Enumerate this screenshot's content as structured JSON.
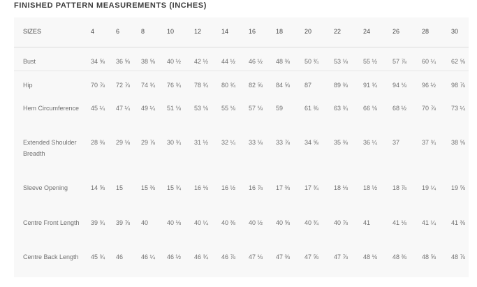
{
  "title": "FINISHED PATTERN MEASUREMENTS (INCHES)",
  "headers": [
    "SIZES",
    "4",
    "6",
    "8",
    "10",
    "12",
    "14",
    "16",
    "18",
    "20",
    "22",
    "24",
    "26",
    "28",
    "30"
  ],
  "rows": [
    {
      "label": "Bust",
      "values": [
        "34 ⅝",
        "36 ⅝",
        "38 ⅝",
        "40 ½",
        "42 ½",
        "44 ½",
        "46 ½",
        "48 ⅜",
        "50 ¾",
        "53 ⅛",
        "55 ½",
        "57 ⅞",
        "60 ¼",
        "62 ⅝"
      ]
    },
    {
      "label": "Hip",
      "values": [
        "70 ⅞",
        "72 ⅞",
        "74 ¾",
        "76 ¾",
        "78 ¾",
        "80 ¾",
        "82 ⅝",
        "84 ⅝",
        "87",
        "89 ⅜",
        "91 ¾",
        "94 ⅛",
        "96 ½",
        "98 ⅞"
      ]
    },
    {
      "label": "Hem Circumference",
      "values": [
        "45 ¼",
        "47 ¼",
        "49 ¼",
        "51 ⅛",
        "53 ⅛",
        "55 ⅛",
        "57 ⅛",
        "59",
        "61 ⅜",
        "63 ¾",
        "66 ⅛",
        "68 ½",
        "70 ⅞",
        "73 ¼"
      ]
    },
    {
      "label": "Extended Shoulder Breadth",
      "values": [
        "28 ⅜",
        "29 ⅛",
        "29 ⅞",
        "30 ¾",
        "31 ½",
        "32 ¼",
        "33 ⅛",
        "33 ⅞",
        "34 ⅝",
        "35 ⅜",
        "36 ¼",
        "37",
        "37 ¾",
        "38 ⅝"
      ]
    },
    {
      "label": "Sleeve Opening",
      "values": [
        "14 ⅝",
        "15",
        "15 ⅜",
        "15 ¾",
        "16 ⅛",
        "16 ½",
        "16 ⅞",
        "17 ⅜",
        "17 ¾",
        "18 ⅛",
        "18 ½",
        "18 ⅞",
        "19 ¼",
        "19 ⅝"
      ]
    },
    {
      "label": "Centre Front Length",
      "values": [
        "39 ¾",
        "39 ⅞",
        "40",
        "40 ⅛",
        "40 ¼",
        "40 ⅜",
        "40 ½",
        "40 ⅝",
        "40 ¾",
        "40 ⅞",
        "41",
        "41 ⅛",
        "41 ¼",
        "41 ⅜"
      ]
    },
    {
      "label": "Centre Back Length",
      "values": [
        "45 ¾",
        "46",
        "46 ¼",
        "46 ½",
        "46 ¾",
        "46 ⅞",
        "47 ⅛",
        "47 ⅜",
        "47 ⅝",
        "47 ⅞",
        "48 ⅛",
        "48 ⅜",
        "48 ⅝",
        "48 ⅞"
      ]
    }
  ]
}
